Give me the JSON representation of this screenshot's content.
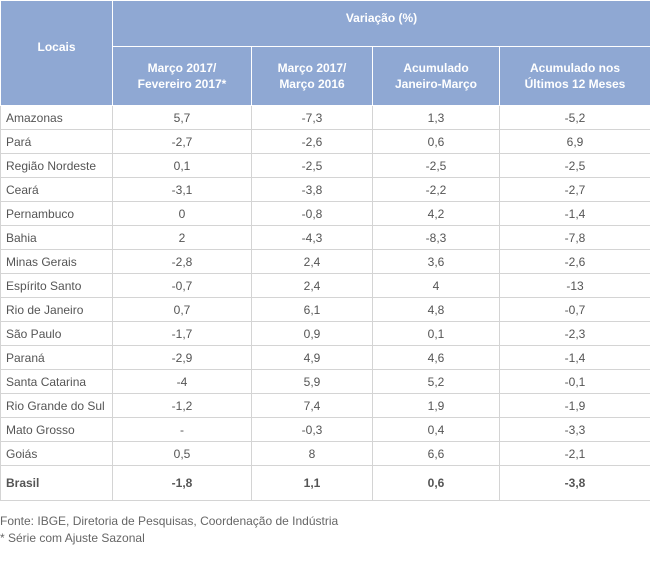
{
  "header": {
    "locais": "Locais",
    "variacao": "Variação (%)",
    "columns": [
      [
        "Março 2017/",
        "Fevereiro 2017*"
      ],
      [
        "Março 2017/",
        "Março 2016"
      ],
      [
        "Acumulado",
        "Janeiro-Março"
      ],
      [
        "Acumulado nos",
        "Últimos 12 Meses"
      ]
    ]
  },
  "rows": [
    [
      "Amazonas",
      "5,7",
      "-7,3",
      "1,3",
      "-5,2"
    ],
    [
      "Pará",
      "-2,7",
      "-2,6",
      "0,6",
      "6,9"
    ],
    [
      "Região Nordeste",
      "0,1",
      "-2,5",
      "-2,5",
      "-2,5"
    ],
    [
      "Ceará",
      "-3,1",
      "-3,8",
      "-2,2",
      "-2,7"
    ],
    [
      "Pernambuco",
      "0",
      "-0,8",
      "4,2",
      "-1,4"
    ],
    [
      "Bahia",
      "2",
      "-4,3",
      "-8,3",
      "-7,8"
    ],
    [
      "Minas Gerais",
      "-2,8",
      "2,4",
      "3,6",
      "-2,6"
    ],
    [
      "Espírito Santo",
      "-0,7",
      "2,4",
      "4",
      "-13"
    ],
    [
      "Rio de Janeiro",
      "0,7",
      "6,1",
      "4,8",
      "-0,7"
    ],
    [
      "São Paulo",
      "-1,7",
      "0,9",
      "0,1",
      "-2,3"
    ],
    [
      "Paraná",
      "-2,9",
      "4,9",
      "4,6",
      "-1,4"
    ],
    [
      "Santa Catarina",
      "-4",
      "5,9",
      "5,2",
      "-0,1"
    ],
    [
      "Rio Grande do Sul",
      "-1,2",
      "7,4",
      "1,9",
      "-1,9"
    ],
    [
      "Mato Grosso",
      "-",
      "-0,3",
      "0,4",
      "-3,3"
    ],
    [
      "Goiás",
      "0,5",
      "8",
      "6,6",
      "-2,1"
    ]
  ],
  "total": [
    "Brasil",
    "-1,8",
    "1,1",
    "0,6",
    "-3,8"
  ],
  "footnotes": {
    "source": "Fonte: IBGE, Diretoria de Pesquisas, Coordenação de Indústria",
    "note": "* Série com Ajuste Sazonal"
  },
  "colors": {
    "header_bg": "#8fa8d3",
    "border": "#d4d4d4"
  }
}
